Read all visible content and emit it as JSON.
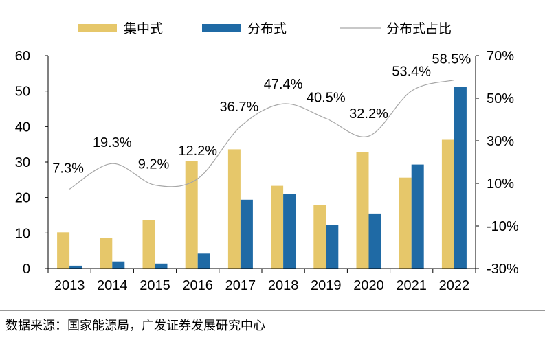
{
  "chart_data": {
    "type": "bar",
    "categories": [
      "2013",
      "2014",
      "2015",
      "2016",
      "2017",
      "2018",
      "2019",
      "2020",
      "2021",
      "2022"
    ],
    "series": [
      {
        "name": "集中式",
        "kind": "bar",
        "axis": "left",
        "color": "#E6C76A",
        "values": [
          10.2,
          8.6,
          13.7,
          30.3,
          33.6,
          23.3,
          17.9,
          32.7,
          25.6,
          36.3
        ]
      },
      {
        "name": "分布式",
        "kind": "bar",
        "axis": "left",
        "color": "#1F6AA5",
        "values": [
          0.8,
          2.0,
          1.4,
          4.2,
          19.4,
          20.9,
          12.2,
          15.5,
          29.3,
          51.1
        ]
      },
      {
        "name": "分布式占比",
        "kind": "line",
        "axis": "right",
        "color": "#A6A6A6",
        "values": [
          7.3,
          19.3,
          9.2,
          12.2,
          36.7,
          47.4,
          40.5,
          32.2,
          53.4,
          58.5
        ],
        "labels": [
          "7.3%",
          "19.3%",
          "9.2%",
          "12.2%",
          "36.7%",
          "47.4%",
          "40.5%",
          "32.2%",
          "53.4%",
          "58.5%"
        ]
      }
    ],
    "y_left": {
      "ylim": [
        0,
        60
      ],
      "ticks": [
        "0",
        "10",
        "20",
        "30",
        "40",
        "50",
        "60"
      ]
    },
    "y_right": {
      "ylim": [
        -30,
        70
      ],
      "ticks": [
        "-30%",
        "-10%",
        "10%",
        "30%",
        "50%",
        "70%"
      ]
    },
    "legend_position": "top",
    "grid": false
  },
  "source": "数据来源：国家能源局，广发证券发展研究中心"
}
